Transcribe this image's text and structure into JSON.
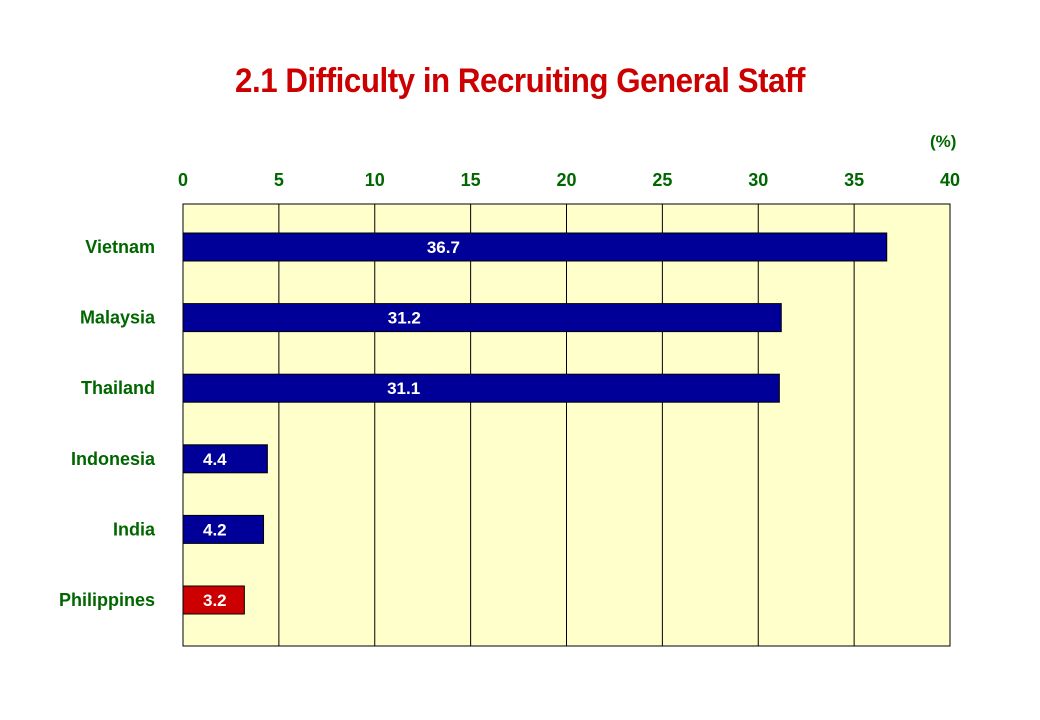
{
  "chart_data": {
    "type": "bar",
    "orientation": "horizontal",
    "title": "2.1 Difficulty in Recruiting General Staff",
    "unit_label": "(%)",
    "categories": [
      "Vietnam",
      "Malaysia",
      "Thailand",
      "Indonesia",
      "India",
      "Philippines"
    ],
    "values": [
      36.7,
      31.2,
      31.1,
      4.4,
      4.2,
      3.2
    ],
    "value_labels": [
      "36.7",
      "31.2",
      "31.1",
      "4.4",
      "4.2",
      "3.2"
    ],
    "xlim": [
      0,
      40
    ],
    "xticks": [
      0,
      5,
      10,
      15,
      20,
      25,
      30,
      35,
      40
    ],
    "grid": true,
    "axis_position": "top",
    "colors": {
      "plot_background": "#ffffcc",
      "bar_default": "#000099",
      "bar_highlight": "#cc0000",
      "title": "#cc0000",
      "labels": "#006600",
      "value_text": "#ffffff",
      "bar_border": "#000000"
    },
    "highlight_category": "Philippines"
  }
}
